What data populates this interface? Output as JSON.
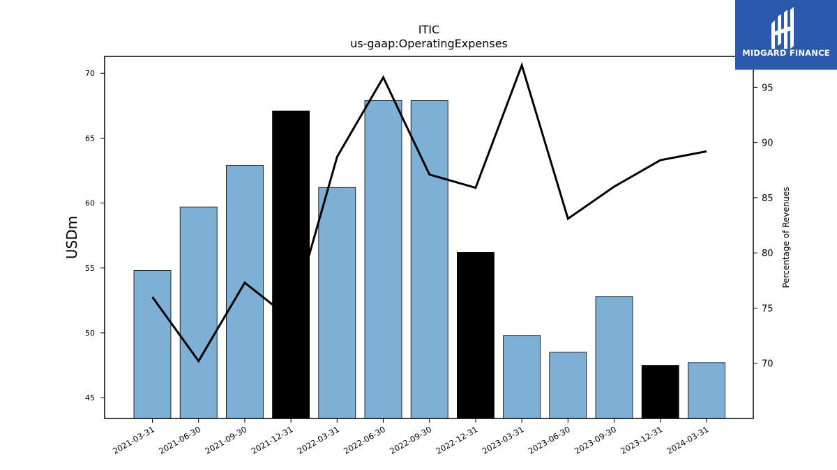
{
  "logo": {
    "text": "MIDGARD FINANCE"
  },
  "chart_data": {
    "type": "bar",
    "title": "ITIC",
    "subtitle": "us-gaap:OperatingExpenses",
    "ylabel": "USDm",
    "y2label": "Percentage of Revenues",
    "ylim": [
      43.4,
      71.3
    ],
    "y2lim": [
      65.0,
      97.8
    ],
    "yticks": [
      45,
      50,
      55,
      60,
      65,
      70
    ],
    "y2ticks": [
      70,
      75,
      80,
      85,
      90,
      95
    ],
    "categories": [
      "2021-03-31",
      "2021-06-30",
      "2021-09-30",
      "2021-12-31",
      "2022-03-31",
      "2022-06-30",
      "2022-09-30",
      "2022-12-31",
      "2023-03-31",
      "2023-06-30",
      "2023-09-30",
      "2023-12-31",
      "2024-03-31"
    ],
    "series": [
      {
        "type": "bar",
        "axis": "left",
        "values": [
          54.8,
          59.7,
          62.9,
          67.1,
          61.2,
          67.9,
          67.9,
          56.2,
          49.8,
          48.5,
          52.8,
          47.5,
          47.7
        ],
        "colors": [
          "#7eb0d5",
          "#7eb0d5",
          "#7eb0d5",
          "#000000",
          "#7eb0d5",
          "#7eb0d5",
          "#7eb0d5",
          "#000000",
          "#7eb0d5",
          "#7eb0d5",
          "#7eb0d5",
          "#000000",
          "#7eb0d5"
        ]
      },
      {
        "type": "line",
        "axis": "right",
        "color": "#000000",
        "values": [
          76.0,
          70.2,
          77.3,
          74.0,
          88.7,
          95.9,
          87.1,
          85.9,
          97.0,
          83.1,
          86.0,
          88.4,
          89.2
        ]
      }
    ],
    "grid": false,
    "legend": "none"
  }
}
